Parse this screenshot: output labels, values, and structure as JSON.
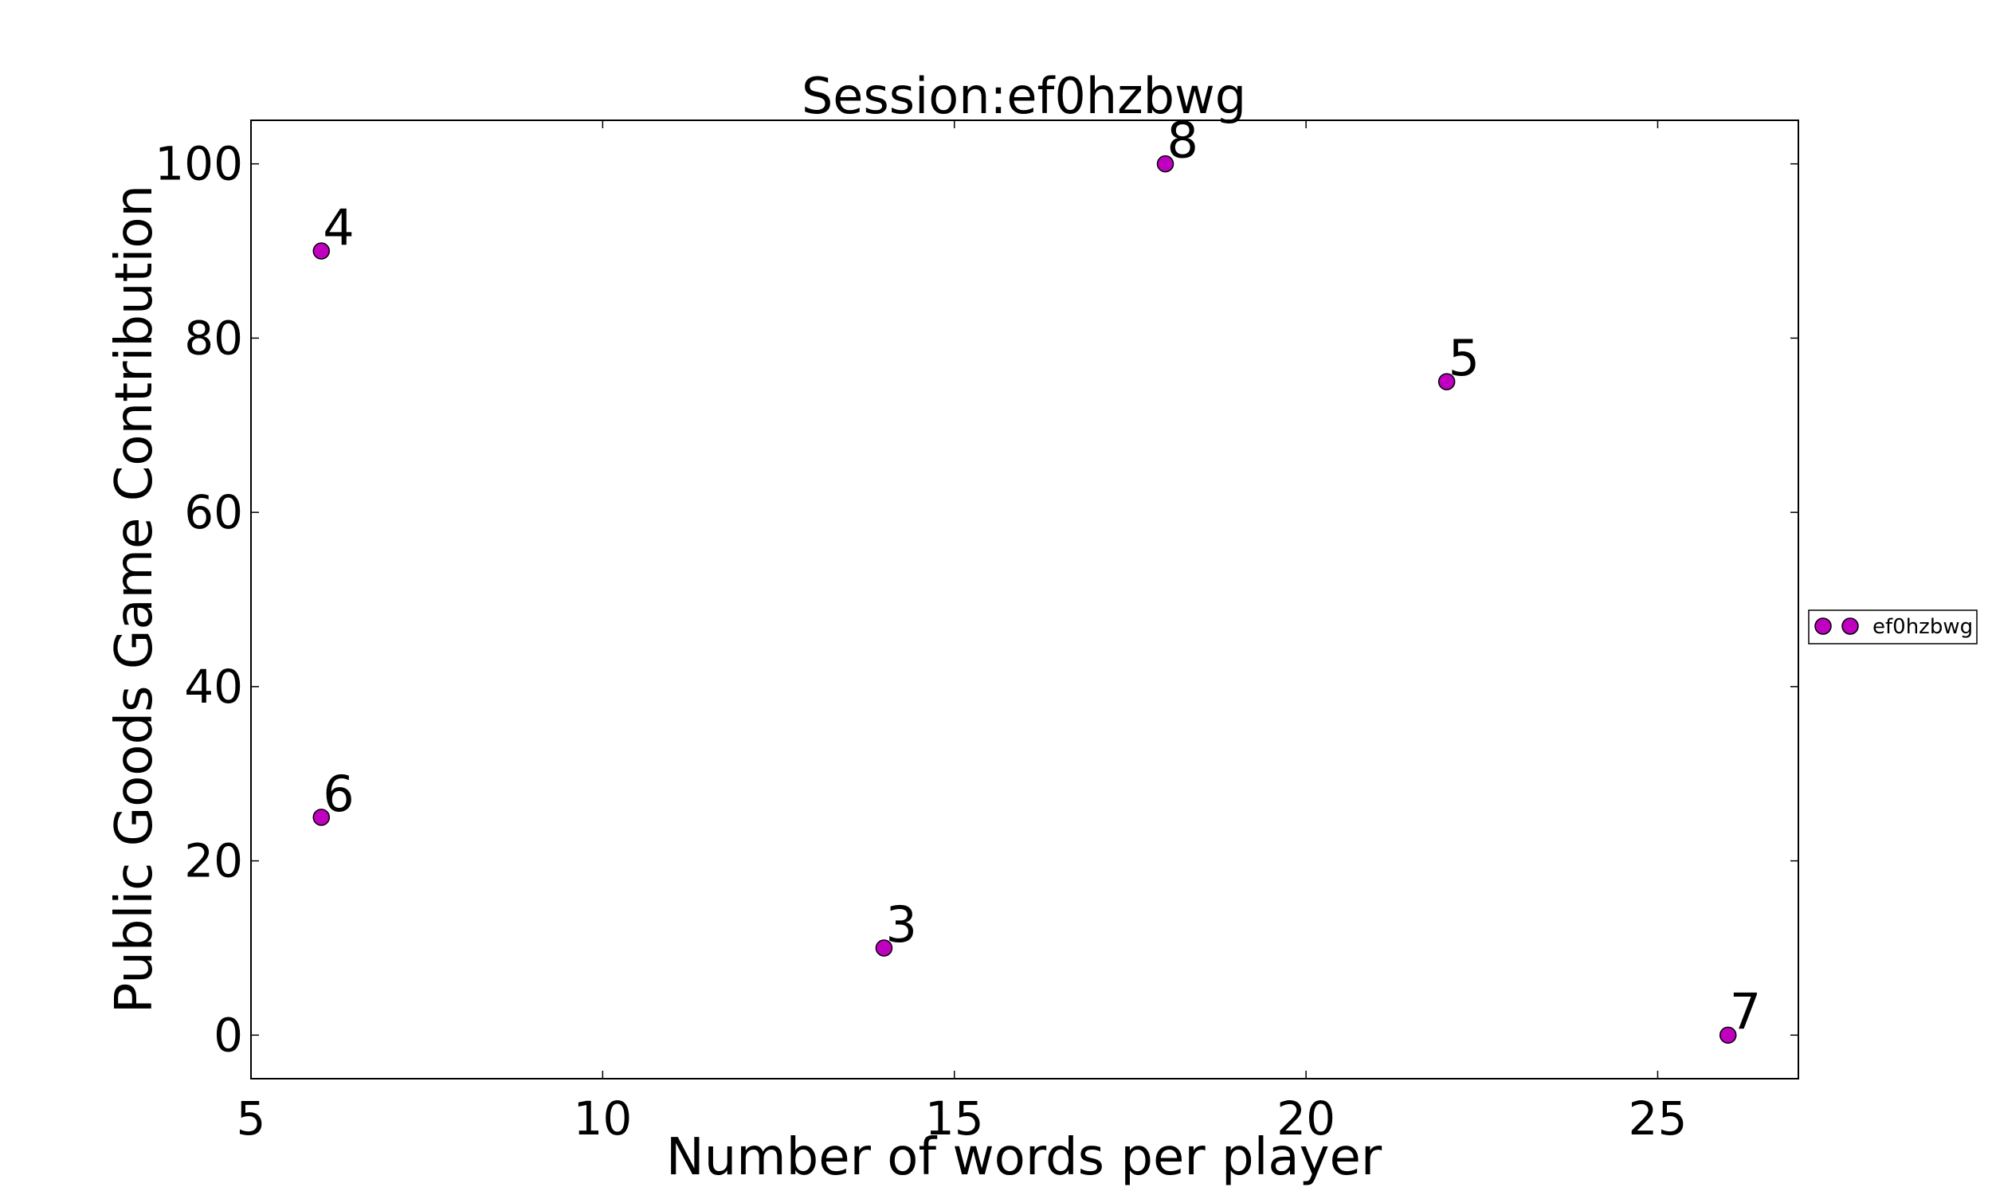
{
  "chart_data": {
    "type": "scatter",
    "title": "Session:ef0hzbwg",
    "xlabel": "Number of words per player",
    "ylabel": "Public Goods Game Contribution",
    "xlim": [
      5,
      27
    ],
    "ylim": [
      -5,
      105
    ],
    "xticks": [
      5,
      10,
      15,
      20,
      25
    ],
    "yticks": [
      0,
      20,
      40,
      60,
      80,
      100
    ],
    "grid": false,
    "legend_position": "right",
    "series": [
      {
        "name": "ef0hzbwg",
        "color": "#bf00bf",
        "points": [
          {
            "x": 6,
            "y": 90,
            "label": "4"
          },
          {
            "x": 18,
            "y": 100,
            "label": "8"
          },
          {
            "x": 22,
            "y": 75,
            "label": "5"
          },
          {
            "x": 6,
            "y": 25,
            "label": "6"
          },
          {
            "x": 14,
            "y": 10,
            "label": "3"
          },
          {
            "x": 26,
            "y": 0,
            "label": "7"
          }
        ]
      }
    ]
  }
}
